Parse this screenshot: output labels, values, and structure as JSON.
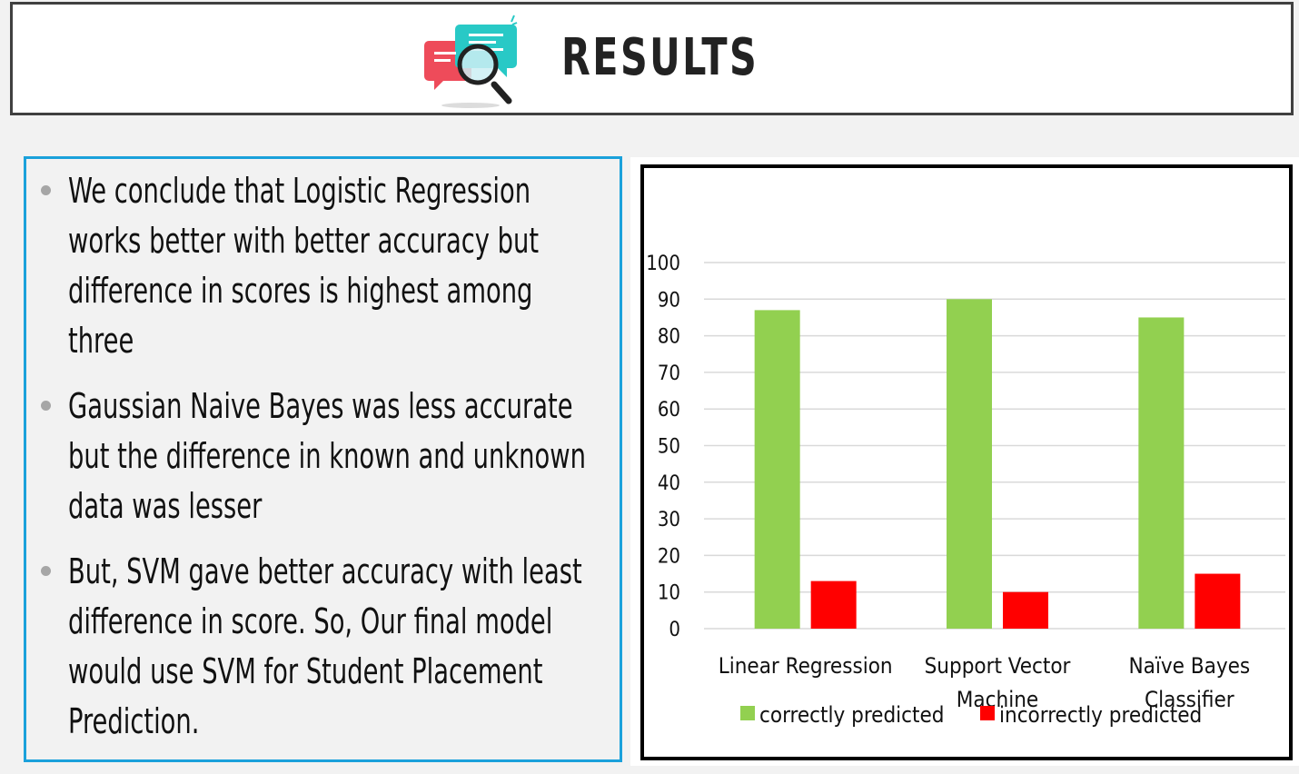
{
  "header": {
    "title": "RESULTS",
    "icon": "chat-bubbles-magnifier-icon"
  },
  "bullets": [
    {
      "text": "We conclude that Logistic Regression works better with better accuracy but difference in scores is highest among three"
    },
    {
      "text": "Gaussian Naive Bayes was less accurate but the difference in known and unknown data was lesser"
    },
    {
      "text": "But, SVM gave better accuracy with least difference in score. So, Our final model would use SVM for Student Placement Prediction."
    }
  ],
  "colors": {
    "accent_border": "#1ba1db",
    "correct": "#92d050",
    "incorrect": "#ff0000"
  },
  "chart_data": {
    "type": "bar",
    "categories": [
      "Linear Regression",
      "Support Vector Machine",
      "Naïve Bayes Classifier"
    ],
    "category_lines": [
      [
        "Linear Regression"
      ],
      [
        "Support Vector",
        "Machine"
      ],
      [
        "Naïve Bayes",
        "Classifier"
      ]
    ],
    "series": [
      {
        "name": "correctly predicted",
        "values": [
          87,
          90,
          85
        ],
        "color": "#92d050"
      },
      {
        "name": "incorrectly predicted",
        "values": [
          13,
          10,
          15
        ],
        "color": "#ff0000"
      }
    ],
    "ylim": [
      0,
      100
    ],
    "yticks": [
      "0",
      "10",
      "20",
      "30",
      "40",
      "50",
      "60",
      "70",
      "80",
      "90",
      "100"
    ],
    "grid": true,
    "legend": "bottom"
  }
}
